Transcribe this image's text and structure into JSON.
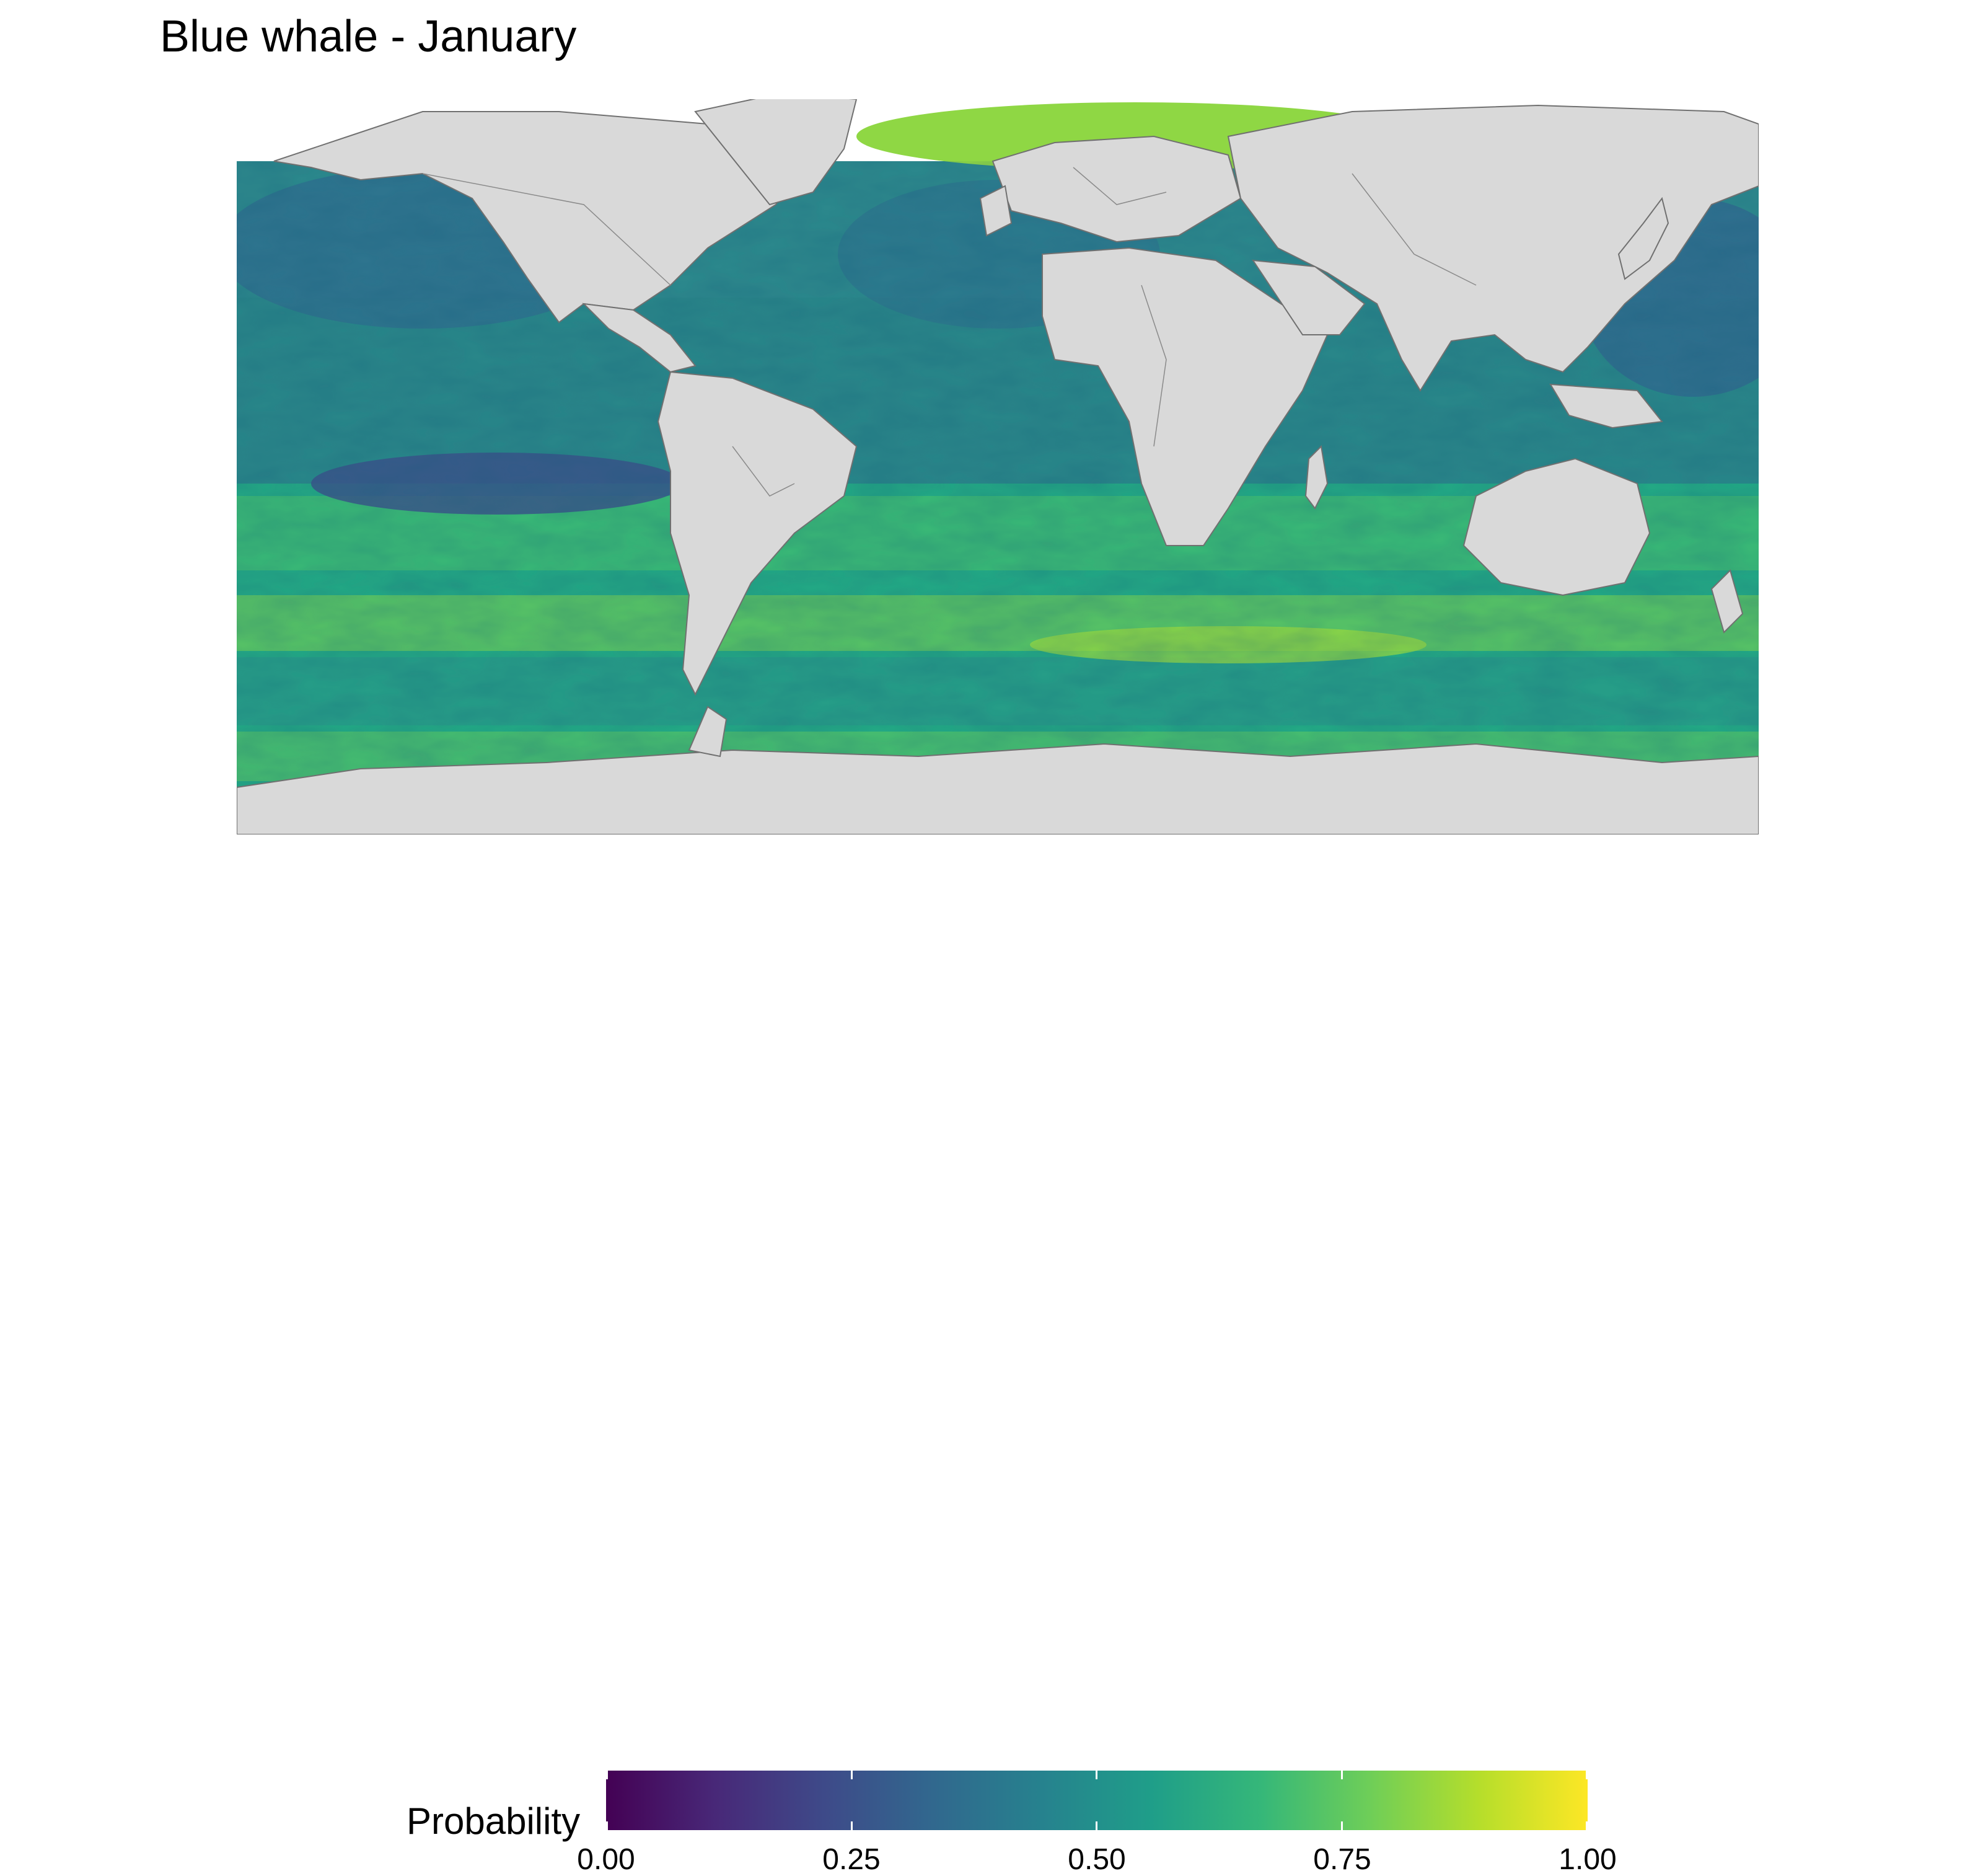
{
  "title": "Blue whale - January",
  "legend": {
    "title": "Probability",
    "ticks": [
      "0.00",
      "0.25",
      "0.50",
      "0.75",
      "1.00"
    ],
    "tick_values": [
      0,
      0.25,
      0.5,
      0.75,
      1
    ],
    "colors": [
      "#440154",
      "#482878",
      "#3e4a89",
      "#31688e",
      "#26828e",
      "#1f9e89",
      "#35b779",
      "#6ece58",
      "#b5de2b",
      "#fde725"
    ]
  },
  "map": {
    "land_color": "#d9d9d9",
    "border_color": "#707070",
    "unmodelled_color": "#ffffff"
  }
}
